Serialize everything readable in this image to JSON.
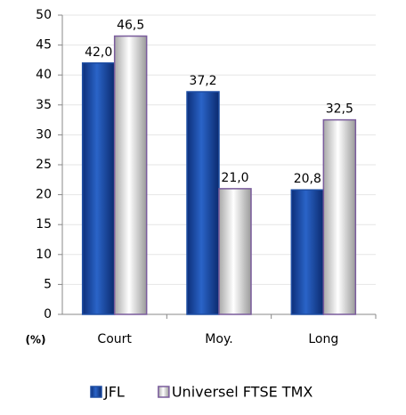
{
  "chart_data": {
    "type": "bar",
    "y_label": "(%)",
    "categories": [
      "Court",
      "Moy.",
      "Long"
    ],
    "series": [
      {
        "name": "JFL",
        "color": "#1f4ea3",
        "values": [
          42.0,
          37.2,
          20.8
        ],
        "value_labels": [
          "42,0",
          "37,2",
          "20,8"
        ]
      },
      {
        "name": "Universel FTSE TMX",
        "color": "#d9d9d9",
        "values": [
          46.5,
          21.0,
          32.5
        ],
        "value_labels": [
          "46,5",
          "21,0",
          "32,5"
        ]
      }
    ],
    "ylim": [
      0,
      50
    ],
    "yticks": [
      0,
      5,
      10,
      15,
      20,
      25,
      30,
      35,
      40,
      45,
      50
    ],
    "grid": true
  }
}
